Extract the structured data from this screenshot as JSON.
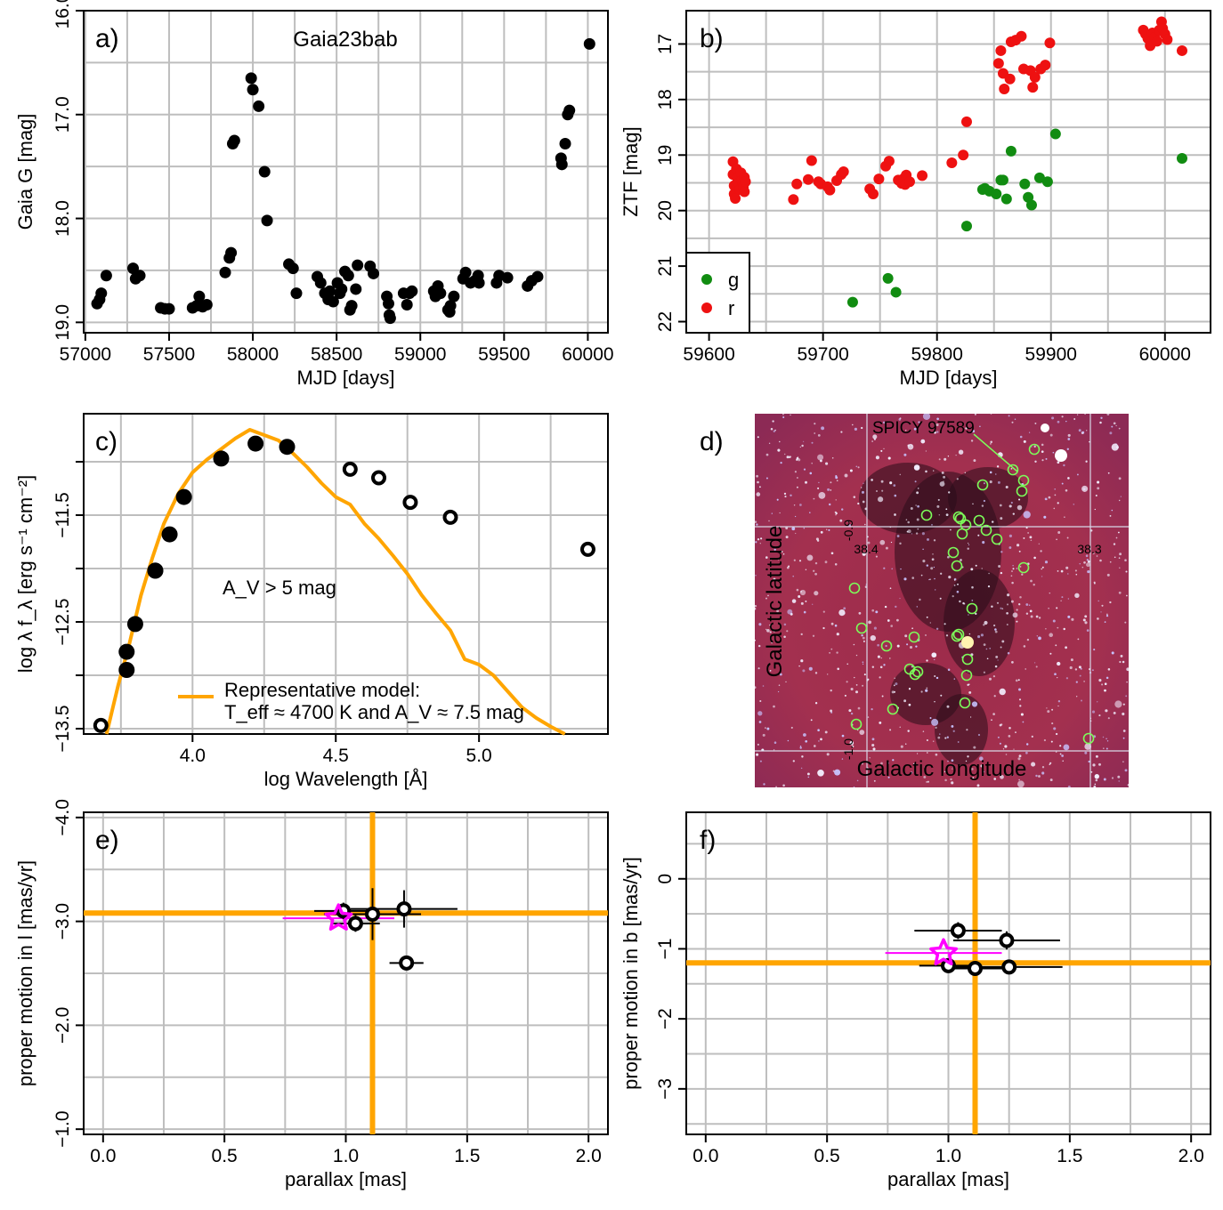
{
  "chart_data": [
    {
      "panel_label": "a)",
      "type": "scatter",
      "title": "Gaia23bab",
      "xlabel": "MJD [days]",
      "ylabel": "Gaia G [mag]",
      "xlim": [
        56990,
        60120
      ],
      "ylim": [
        19.1,
        16.0
      ],
      "y_reversed": true,
      "x_ticks": [
        57000,
        57500,
        58000,
        58500,
        59000,
        59500,
        60000
      ],
      "y_ticks": [
        "16.0",
        "17.0",
        "18.0",
        "19.0"
      ],
      "grid": true,
      "series": [
        {
          "color": "#000000",
          "points": [
            [
              57070,
              18.82
            ],
            [
              57085,
              18.78
            ],
            [
              57095,
              18.72
            ],
            [
              57125,
              18.55
            ],
            [
              57285,
              18.48
            ],
            [
              57300,
              18.58
            ],
            [
              57325,
              18.55
            ],
            [
              57450,
              18.86
            ],
            [
              57475,
              18.87
            ],
            [
              57500,
              18.87
            ],
            [
              57640,
              18.86
            ],
            [
              57665,
              18.84
            ],
            [
              57680,
              18.75
            ],
            [
              57700,
              18.85
            ],
            [
              57725,
              18.83
            ],
            [
              57835,
              18.52
            ],
            [
              57860,
              18.38
            ],
            [
              57870,
              18.33
            ],
            [
              57880,
              17.28
            ],
            [
              57890,
              17.25
            ],
            [
              57990,
              16.65
            ],
            [
              58000,
              16.76
            ],
            [
              58035,
              16.92
            ],
            [
              58070,
              17.55
            ],
            [
              58085,
              18.02
            ],
            [
              58215,
              18.44
            ],
            [
              58240,
              18.48
            ],
            [
              58260,
              18.72
            ],
            [
              58385,
              18.56
            ],
            [
              58405,
              18.62
            ],
            [
              58430,
              18.72
            ],
            [
              58450,
              18.78
            ],
            [
              58460,
              18.7
            ],
            [
              58480,
              18.8
            ],
            [
              58505,
              18.62
            ],
            [
              58520,
              18.72
            ],
            [
              58530,
              18.68
            ],
            [
              58550,
              18.51
            ],
            [
              58570,
              18.55
            ],
            [
              58580,
              18.88
            ],
            [
              58590,
              18.84
            ],
            [
              58615,
              18.68
            ],
            [
              58625,
              18.45
            ],
            [
              58700,
              18.46
            ],
            [
              58720,
              18.53
            ],
            [
              58800,
              18.75
            ],
            [
              58810,
              18.82
            ],
            [
              58815,
              18.93
            ],
            [
              58820,
              18.96
            ],
            [
              58900,
              18.72
            ],
            [
              58920,
              18.83
            ],
            [
              58935,
              18.72
            ],
            [
              58950,
              18.7
            ],
            [
              59080,
              18.7
            ],
            [
              59090,
              18.75
            ],
            [
              59105,
              18.65
            ],
            [
              59120,
              18.72
            ],
            [
              59165,
              18.88
            ],
            [
              59175,
              18.9
            ],
            [
              59180,
              18.84
            ],
            [
              59200,
              18.75
            ],
            [
              59255,
              18.58
            ],
            [
              59270,
              18.52
            ],
            [
              59300,
              18.62
            ],
            [
              59325,
              18.6
            ],
            [
              59345,
              18.55
            ],
            [
              59350,
              18.62
            ],
            [
              59455,
              18.62
            ],
            [
              59470,
              18.55
            ],
            [
              59520,
              18.57
            ],
            [
              59640,
              18.65
            ],
            [
              59665,
              18.6
            ],
            [
              59700,
              18.56
            ],
            [
              59840,
              17.42
            ],
            [
              59845,
              17.48
            ],
            [
              59865,
              17.28
            ],
            [
              59880,
              17.0
            ],
            [
              59890,
              16.96
            ],
            [
              60010,
              16.32
            ]
          ]
        }
      ]
    },
    {
      "panel_label": "b)",
      "type": "scatter",
      "xlabel": "MJD [days]",
      "ylabel": "ZTF [mag]",
      "xlim": [
        59580,
        60040
      ],
      "ylim": [
        22.2,
        16.4
      ],
      "y_reversed": true,
      "x_ticks": [
        59600,
        59700,
        59800,
        59900,
        60000
      ],
      "y_ticks": [
        17,
        18,
        19,
        20,
        21,
        22
      ],
      "grid": true,
      "legend_position": "bottom-left",
      "series": [
        {
          "name": "g",
          "color": "#118c11",
          "points": [
            [
              59726,
              21.65
            ],
            [
              59757,
              21.22
            ],
            [
              59764,
              21.47
            ],
            [
              59826,
              20.28
            ],
            [
              59840,
              19.62
            ],
            [
              59842,
              19.6
            ],
            [
              59846,
              19.65
            ],
            [
              59852,
              19.7
            ],
            [
              59856,
              19.45
            ],
            [
              59858,
              19.45
            ],
            [
              59861,
              19.79
            ],
            [
              59865,
              18.93
            ],
            [
              59877,
              19.52
            ],
            [
              59880,
              19.76
            ],
            [
              59883,
              19.9
            ],
            [
              59890,
              19.41
            ],
            [
              59897,
              19.48
            ],
            [
              59904,
              18.62
            ],
            [
              60015,
              19.06
            ]
          ]
        },
        {
          "name": "r",
          "color": "#ee1111",
          "points": [
            [
              59621,
              19.12
            ],
            [
              59621,
              19.35
            ],
            [
              59622,
              19.55
            ],
            [
              59622,
              19.7
            ],
            [
              59623,
              19.78
            ],
            [
              59624,
              19.25
            ],
            [
              59625,
              19.42
            ],
            [
              59626,
              19.5
            ],
            [
              59627,
              19.62
            ],
            [
              59628,
              19.32
            ],
            [
              59629,
              19.46
            ],
            [
              59630,
              19.58
            ],
            [
              59631,
              19.4
            ],
            [
              59631,
              19.66
            ],
            [
              59632,
              19.48
            ],
            [
              59674,
              19.8
            ],
            [
              59677,
              19.52
            ],
            [
              59687,
              19.44
            ],
            [
              59690,
              19.1
            ],
            [
              59696,
              19.48
            ],
            [
              59698,
              19.52
            ],
            [
              59704,
              19.57
            ],
            [
              59706,
              19.63
            ],
            [
              59712,
              19.46
            ],
            [
              59716,
              19.35
            ],
            [
              59718,
              19.3
            ],
            [
              59741,
              19.61
            ],
            [
              59744,
              19.7
            ],
            [
              59749,
              19.43
            ],
            [
              59755,
              19.2
            ],
            [
              59758,
              19.11
            ],
            [
              59766,
              19.45
            ],
            [
              59769,
              19.51
            ],
            [
              59771,
              19.42
            ],
            [
              59772,
              19.53
            ],
            [
              59773,
              19.36
            ],
            [
              59776,
              19.48
            ],
            [
              59787,
              19.37
            ],
            [
              59813,
              19.14
            ],
            [
              59823,
              19.0
            ],
            [
              59826,
              18.4
            ],
            [
              59854,
              17.35
            ],
            [
              59856,
              17.12
            ],
            [
              59858,
              17.53
            ],
            [
              59859,
              17.81
            ],
            [
              59864,
              17.63
            ],
            [
              59865,
              16.96
            ],
            [
              59869,
              16.93
            ],
            [
              59874,
              16.86
            ],
            [
              59876,
              17.45
            ],
            [
              59882,
              17.48
            ],
            [
              59884,
              17.78
            ],
            [
              59886,
              17.6
            ],
            [
              59891,
              17.45
            ],
            [
              59895,
              17.38
            ],
            [
              59899,
              16.98
            ],
            [
              59981,
              16.75
            ],
            [
              59983,
              16.82
            ],
            [
              59985,
              16.9
            ],
            [
              59987,
              17.03
            ],
            [
              59989,
              16.8
            ],
            [
              59991,
              16.88
            ],
            [
              59993,
              16.95
            ],
            [
              59995,
              16.75
            ],
            [
              59997,
              16.6
            ],
            [
              59998,
              16.72
            ],
            [
              60000,
              16.82
            ],
            [
              60002,
              16.92
            ],
            [
              60015,
              17.12
            ]
          ]
        }
      ]
    },
    {
      "panel_label": "c)",
      "type": "scatter",
      "xlabel": "log Wavelength [Å]",
      "ylabel": "log λ f_λ [erg s⁻¹ cm⁻²]",
      "xlim": [
        3.62,
        5.45
      ],
      "ylim": [
        -13.55,
        -10.55
      ],
      "x_ticks": [
        "4.0",
        "4.5",
        "5.0"
      ],
      "y_ticks": [
        "-11.5",
        "-12.5",
        "-13.5"
      ],
      "grid": true,
      "annotation": "A_V > 5 mag",
      "filled_points": [
        [
          3.77,
          -12.78
        ],
        [
          3.77,
          -12.95
        ],
        [
          3.8,
          -12.52
        ],
        [
          3.87,
          -12.02
        ],
        [
          3.87,
          -12.02
        ],
        [
          3.92,
          -11.68
        ],
        [
          3.97,
          -11.33
        ],
        [
          4.1,
          -10.97
        ],
        [
          4.22,
          -10.83
        ],
        [
          4.33,
          -10.86
        ]
      ],
      "open_points": [
        [
          3.68,
          -13.47
        ],
        [
          4.55,
          -11.07
        ],
        [
          4.65,
          -11.15
        ],
        [
          4.76,
          -11.38
        ],
        [
          4.9,
          -11.52
        ],
        [
          5.38,
          -11.82
        ]
      ],
      "model_line": {
        "color": "#ffa500",
        "legend": "Representative model:",
        "legend2": "T_eff ≈ 4700 K and A_V ≈ 7.5 mag",
        "points": [
          [
            3.7,
            -13.6
          ],
          [
            3.74,
            -13.1
          ],
          [
            3.78,
            -12.7
          ],
          [
            3.82,
            -12.25
          ],
          [
            3.86,
            -11.9
          ],
          [
            3.9,
            -11.58
          ],
          [
            3.95,
            -11.3
          ],
          [
            4.0,
            -11.1
          ],
          [
            4.05,
            -10.98
          ],
          [
            4.1,
            -10.88
          ],
          [
            4.15,
            -10.78
          ],
          [
            4.2,
            -10.7
          ],
          [
            4.25,
            -10.75
          ],
          [
            4.3,
            -10.8
          ],
          [
            4.35,
            -10.92
          ],
          [
            4.4,
            -11.05
          ],
          [
            4.45,
            -11.2
          ],
          [
            4.5,
            -11.33
          ],
          [
            4.55,
            -11.4
          ],
          [
            4.6,
            -11.58
          ],
          [
            4.65,
            -11.72
          ],
          [
            4.7,
            -11.88
          ],
          [
            4.75,
            -12.05
          ],
          [
            4.8,
            -12.25
          ],
          [
            4.85,
            -12.42
          ],
          [
            4.9,
            -12.58
          ],
          [
            4.95,
            -12.85
          ],
          [
            5.0,
            -12.9
          ],
          [
            5.05,
            -13.0
          ],
          [
            5.1,
            -13.15
          ],
          [
            5.15,
            -13.3
          ],
          [
            5.2,
            -13.4
          ],
          [
            5.25,
            -13.48
          ],
          [
            5.3,
            -13.6
          ]
        ]
      }
    },
    {
      "panel_label": "d)",
      "type": "image",
      "source_label": "SPICY 97589",
      "xlabel": "Galactic longitude",
      "ylabel": "Galactic latitude",
      "grid_labels": [
        "-0.9",
        "38.4",
        "38.3",
        "-1.0"
      ],
      "source_circles": 32
    },
    {
      "panel_label": "e)",
      "type": "scatter",
      "xlabel": "parallax [mas]",
      "ylabel": "proper motion in l [mas/yr]",
      "xlim": [
        -0.08,
        2.08
      ],
      "ylim": [
        -0.95,
        -4.05
      ],
      "y_reversed": true,
      "x_ticks": [
        "0.0",
        "0.5",
        "1.0",
        "1.5",
        "2.0"
      ],
      "y_ticks": [
        "-4.0",
        "-3.0",
        "-2.0",
        "-1.0"
      ],
      "grid": true,
      "reference_lines": {
        "x": 1.11,
        "y": -3.08,
        "color": "#ffa500"
      },
      "points": [
        {
          "x": 0.99,
          "y": -3.1,
          "xerr": 0.12,
          "yerr": 0.08
        },
        {
          "x": 1.04,
          "y": -2.98,
          "xerr": 0.1,
          "yerr": 0.08
        },
        {
          "x": 1.11,
          "y": -3.07,
          "xerr": 0.2,
          "yerr": 0.25
        },
        {
          "x": 1.24,
          "y": -3.12,
          "xerr": 0.22,
          "yerr": 0.18
        },
        {
          "x": 1.25,
          "y": -2.6,
          "xerr": 0.07,
          "yerr": 0.06
        }
      ],
      "star": {
        "x": 0.97,
        "y": -3.03,
        "xerr": 0.23,
        "color": "#ff00ff"
      }
    },
    {
      "panel_label": "f)",
      "type": "scatter",
      "xlabel": "parallax [mas]",
      "ylabel": "proper motion in b [mas/yr]",
      "xlim": [
        -0.08,
        2.08
      ],
      "ylim": [
        -3.65,
        0.95
      ],
      "x_ticks": [
        "0.0",
        "0.5",
        "1.0",
        "1.5",
        "2.0"
      ],
      "y_ticks": [
        0,
        -1,
        -2,
        -3
      ],
      "grid": true,
      "reference_lines": {
        "x": 1.11,
        "y": -1.2,
        "color": "#ffa500"
      },
      "points": [
        {
          "x": 1.04,
          "y": -0.74,
          "xerr": 0.18,
          "yerr": 0.12
        },
        {
          "x": 1.24,
          "y": -0.88,
          "xerr": 0.22,
          "yerr": 0.13
        },
        {
          "x": 1.0,
          "y": -1.24,
          "xerr": 0.12,
          "yerr": 0.08
        },
        {
          "x": 1.11,
          "y": -1.28,
          "xerr": 0.12,
          "yerr": 0.1
        },
        {
          "x": 1.25,
          "y": -1.26,
          "xerr": 0.22,
          "yerr": 0.08
        }
      ],
      "star": {
        "x": 0.98,
        "y": -1.06,
        "xerr": 0.24,
        "color": "#ff00ff"
      }
    }
  ]
}
